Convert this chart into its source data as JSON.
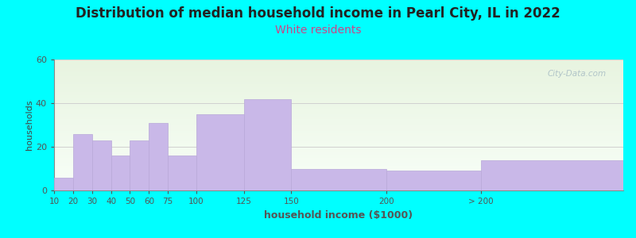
{
  "title": "Distribution of median household income in Pearl City, IL in 2022",
  "subtitle": "White residents",
  "xlabel": "household income ($1000)",
  "ylabel": "households",
  "background_color": "#00FFFF",
  "plot_bg_gradient_top": "#e8f4e0",
  "plot_bg_gradient_bottom": "#f8fff8",
  "bar_color": "#c9b8e8",
  "bar_edge_color": "#b8a8d8",
  "title_fontsize": 12,
  "subtitle_fontsize": 10,
  "subtitle_color": "#cc4488",
  "ylabel_fontsize": 8,
  "xlabel_fontsize": 9,
  "ylim": [
    0,
    60
  ],
  "yticks": [
    0,
    20,
    40,
    60
  ],
  "bar_lefts": [
    0,
    1,
    2,
    3,
    4,
    5,
    6,
    7.5,
    10,
    12.5,
    17.5,
    22.5
  ],
  "bar_widths": [
    1,
    1,
    1,
    1,
    1,
    1,
    1.5,
    2.5,
    2.5,
    5,
    5,
    7.5
  ],
  "bar_heights": [
    6,
    26,
    23,
    16,
    23,
    31,
    16,
    35,
    42,
    10,
    9,
    14
  ],
  "tick_positions": [
    0,
    1,
    2,
    3,
    4,
    5,
    6,
    7.5,
    10,
    12.5,
    17.5,
    22.5
  ],
  "tick_labels": [
    "10",
    "20",
    "30",
    "40",
    "50",
    "60",
    "75",
    "100",
    "125",
    "150",
    "200",
    "> 200"
  ],
  "xlim": [
    0,
    30
  ],
  "watermark_text": "City-Data.com",
  "watermark_color": "#a8bcc4",
  "grid_color": "#d0d0d0",
  "axis_color": "#888888"
}
